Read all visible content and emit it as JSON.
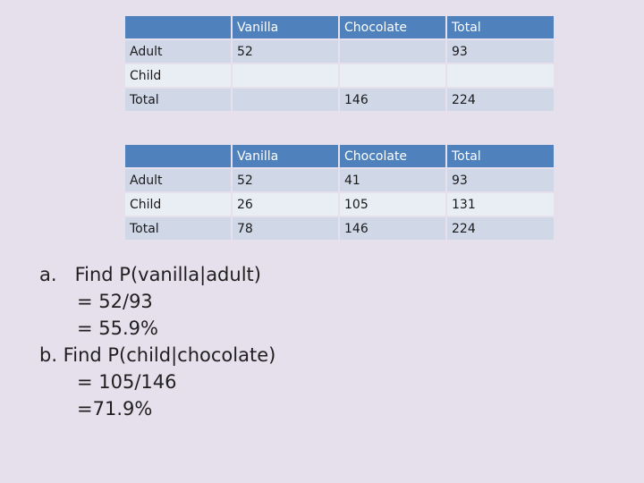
{
  "table1": {
    "header": [
      "",
      "Vanilla",
      "Chocolate",
      "Total"
    ],
    "rows": [
      [
        "Adult",
        "52",
        "",
        "93"
      ],
      [
        "Child",
        "",
        "",
        ""
      ],
      [
        "Total",
        "",
        "146",
        "224"
      ]
    ]
  },
  "table2": {
    "header": [
      "",
      "Vanilla",
      "Chocolate",
      "Total"
    ],
    "rows": [
      [
        "Adult",
        "52",
        "41",
        "93"
      ],
      [
        "Child",
        "26",
        "105",
        "131"
      ],
      [
        "Total",
        "78",
        "146",
        "224"
      ]
    ]
  },
  "notes": {
    "a_label": "a.",
    "a_question": "Find P(vanilla|adult)",
    "a_step1": "= 52/93",
    "a_step2": "= 55.9%",
    "b_question": "b. Find P(child|chocolate)",
    "b_step1": "= 105/146",
    "b_step2": "=71.9%"
  },
  "colors": {
    "background": "#e6e0ec",
    "header": "#4f81bd",
    "row_dark": "#d0d8e8",
    "row_light": "#e9edf4"
  }
}
